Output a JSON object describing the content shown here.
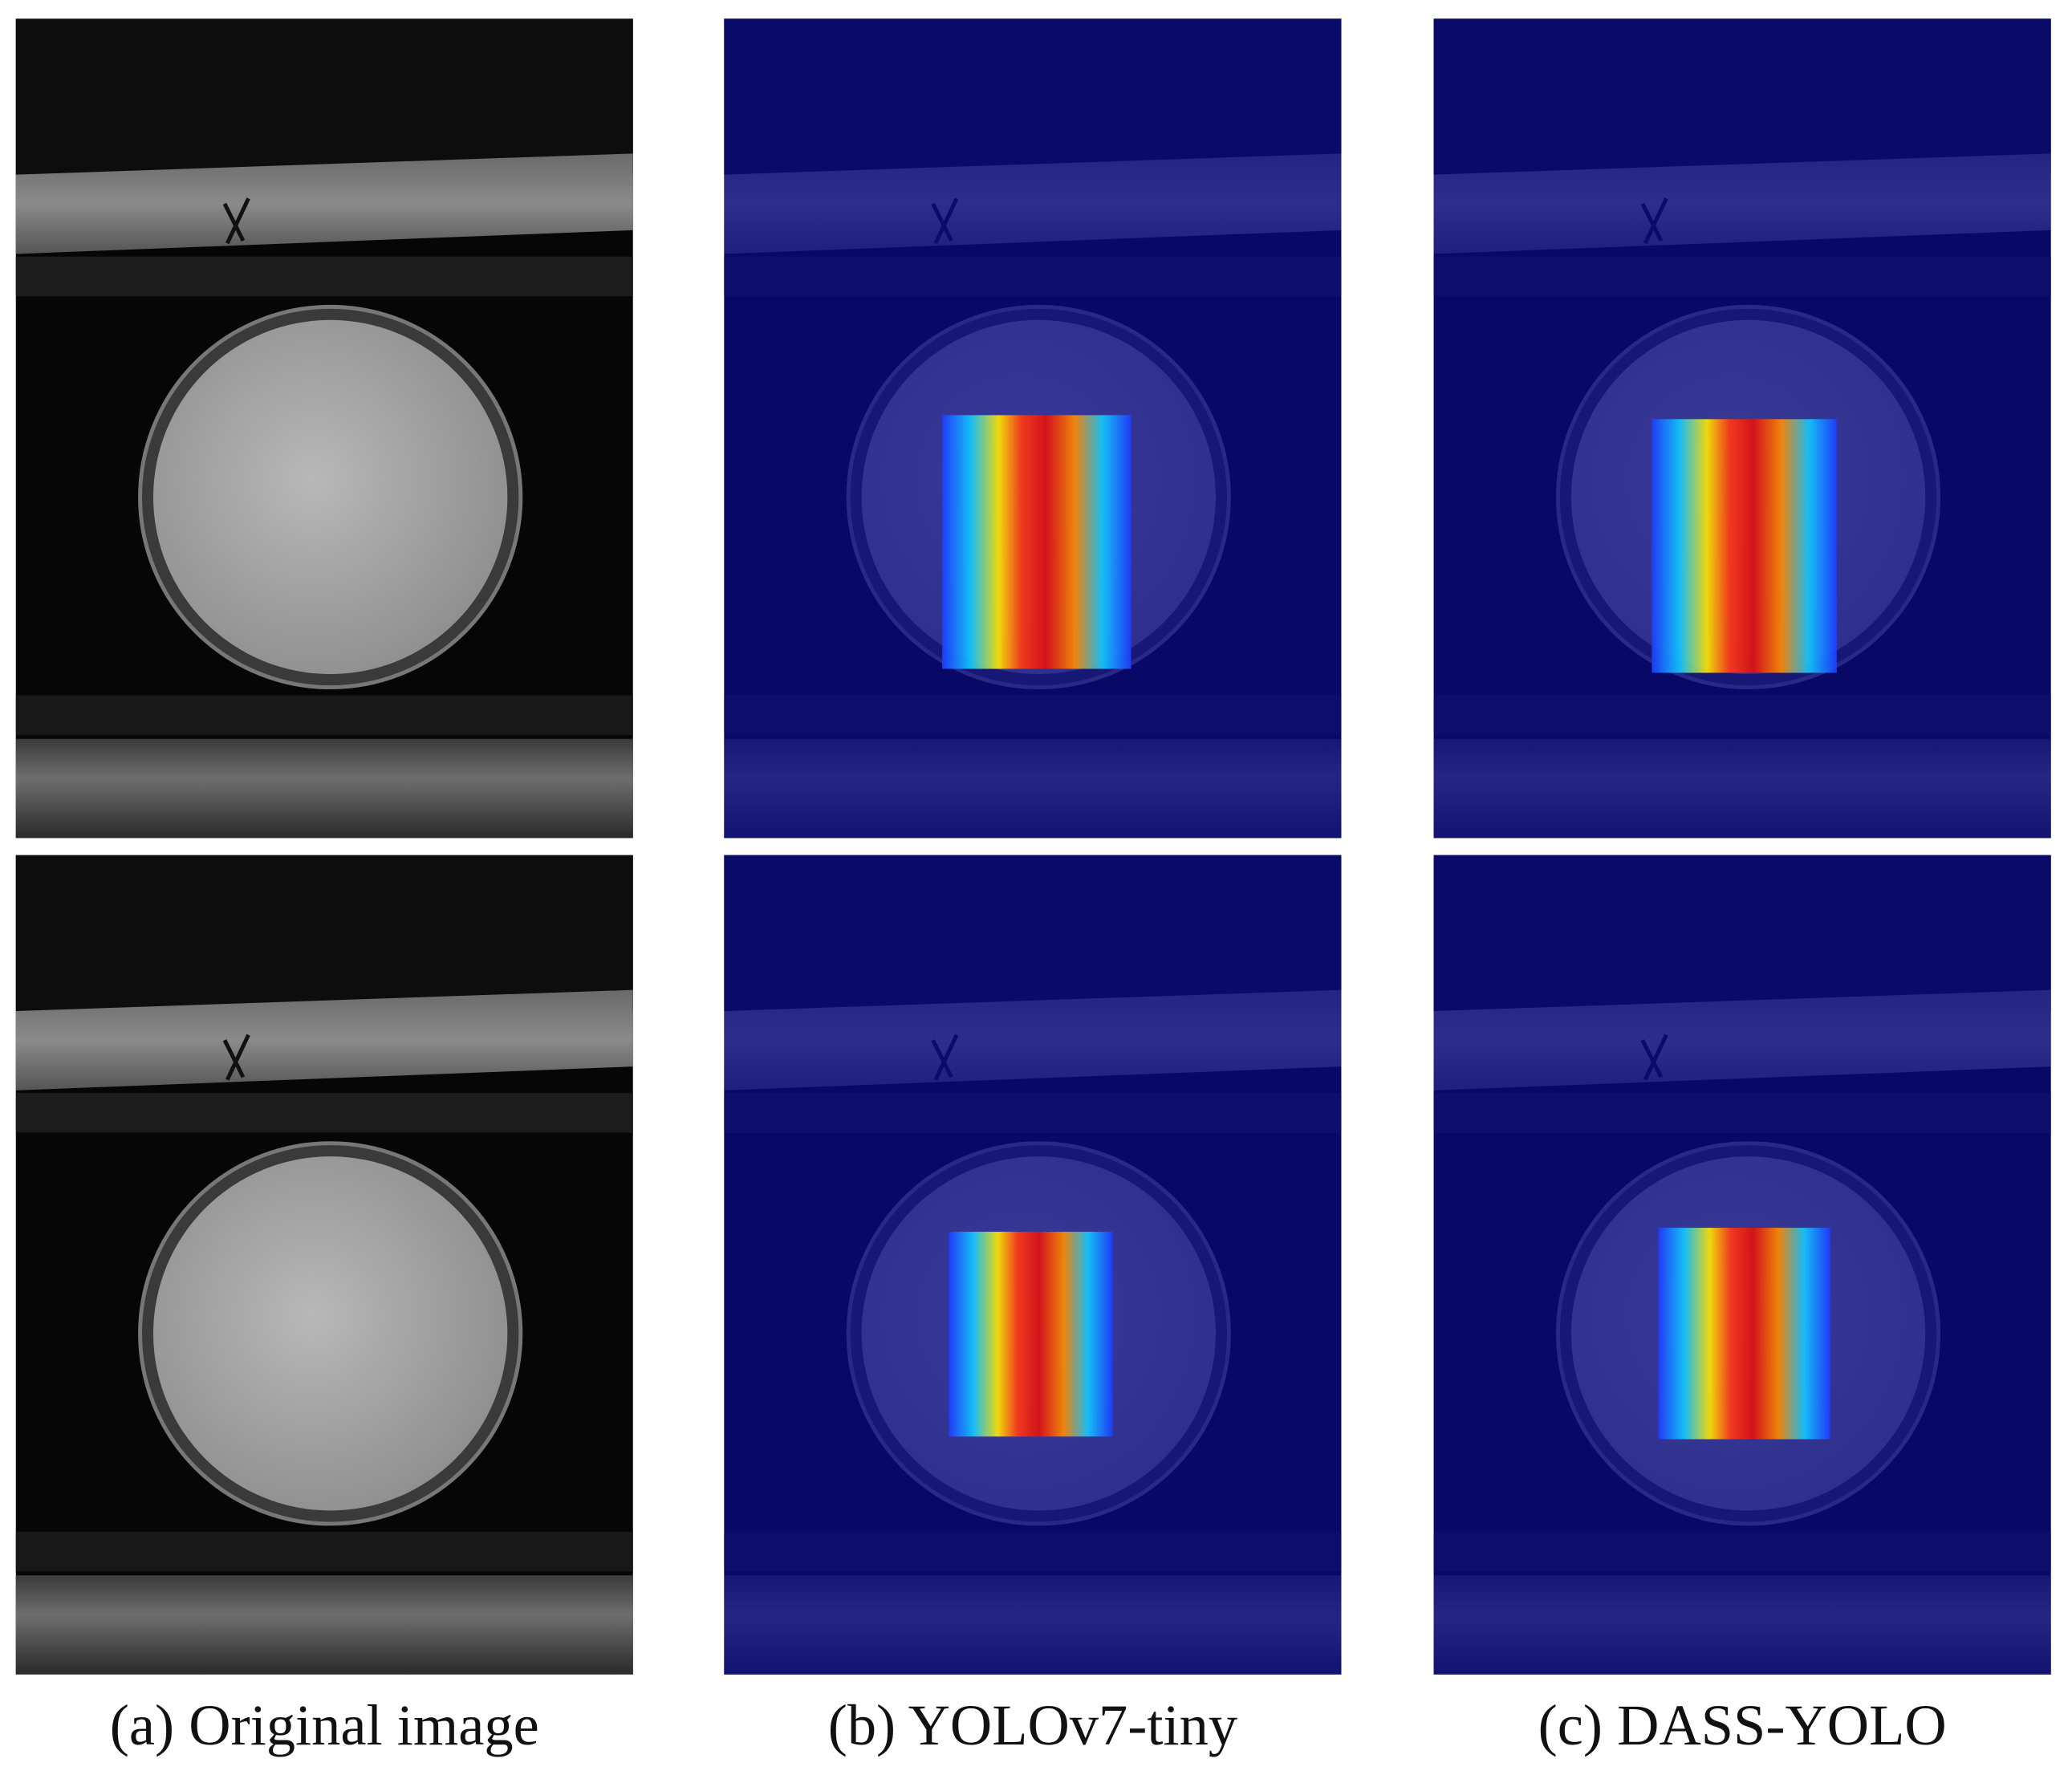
{
  "columns": [
    {
      "caption": "(a) Original image"
    },
    {
      "caption": "(b) YOLOv7-tiny"
    },
    {
      "caption": "(c) DASS-YOLO"
    }
  ]
}
